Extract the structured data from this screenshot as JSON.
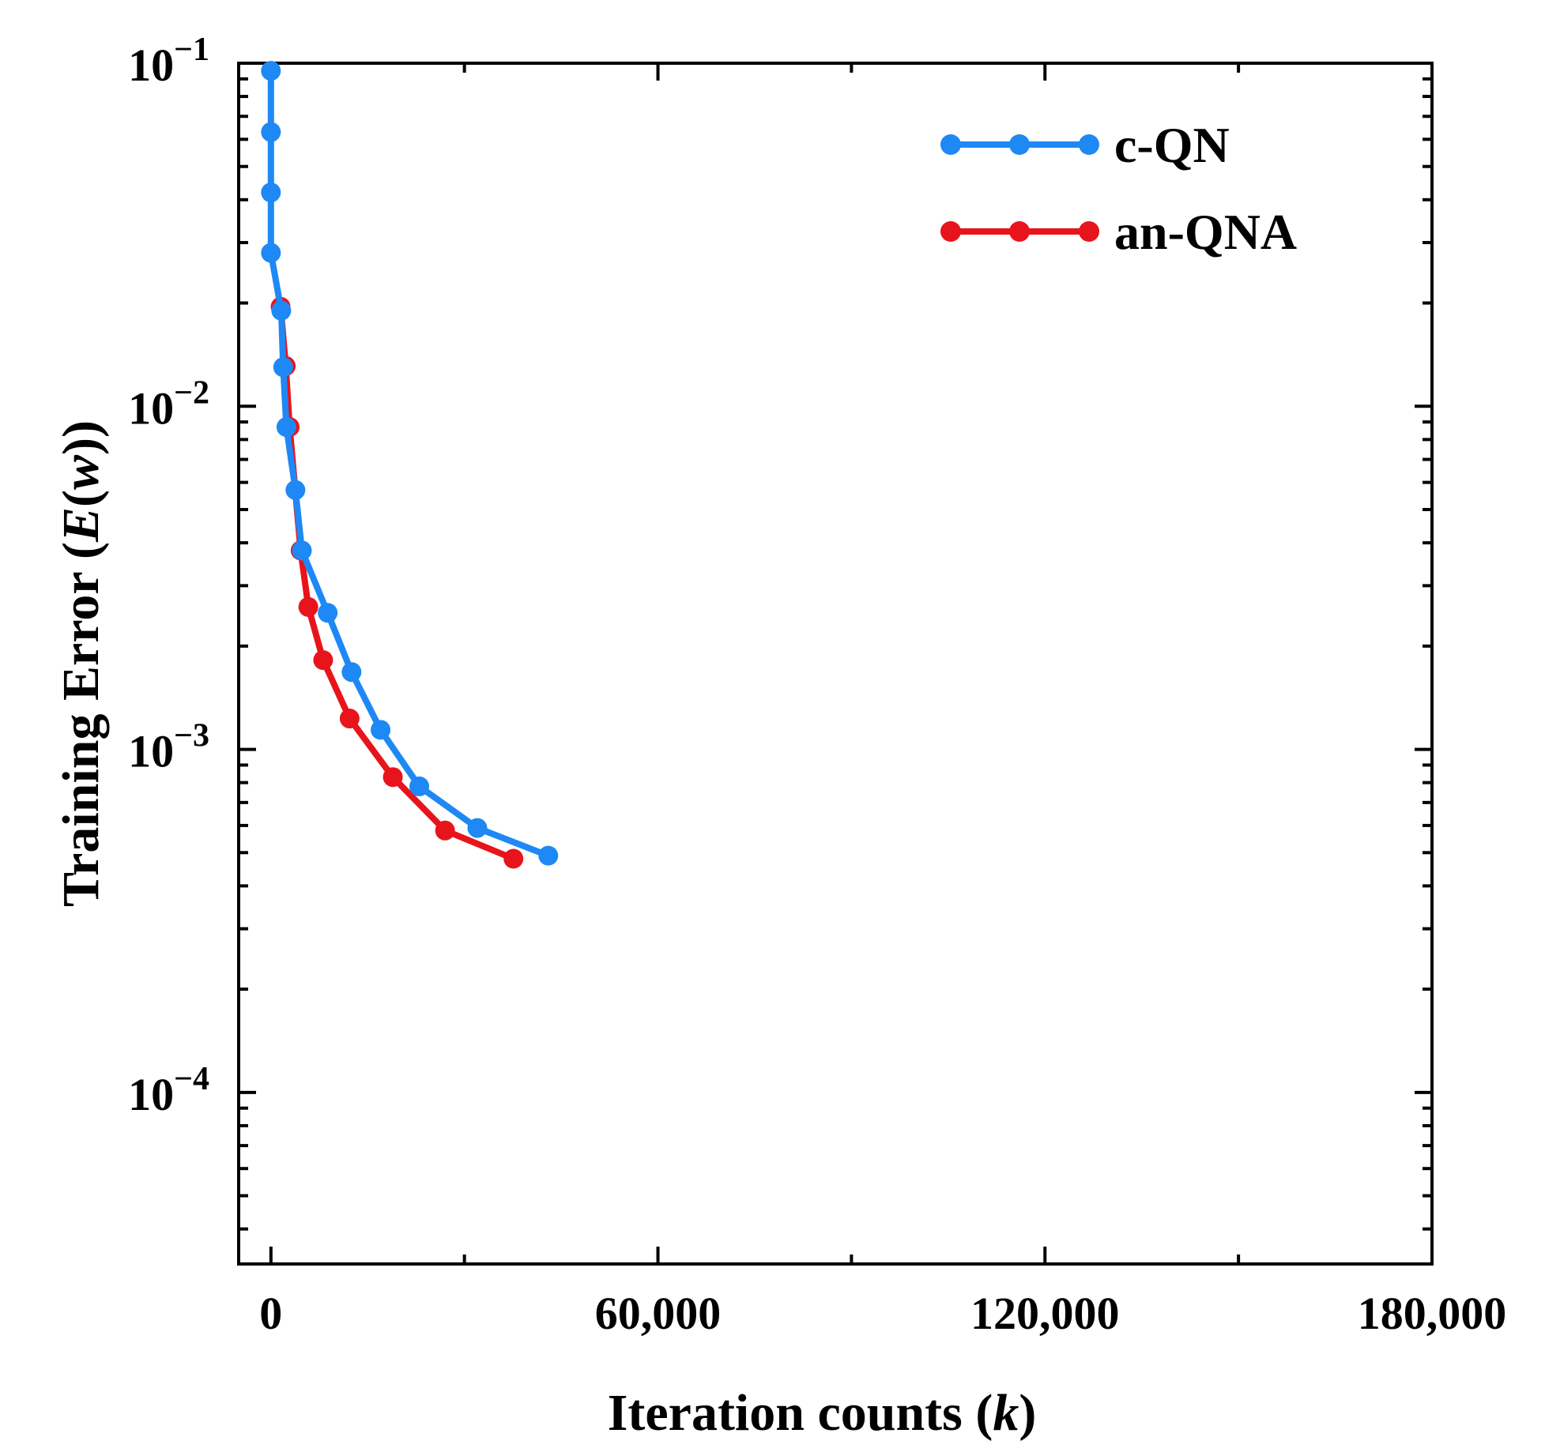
{
  "chart_data": {
    "type": "line",
    "title": "",
    "xlabel": {
      "text": "Iteration counts (",
      "var": "k",
      "close": ")"
    },
    "ylabel": {
      "text": "Training Error (",
      "var": "E",
      "open_paren": "(",
      "var2": "w",
      "close": "))"
    },
    "xlim": [
      -5000,
      180000
    ],
    "ylim_log10": [
      -4.5,
      -1
    ],
    "x_ticks": [
      0,
      60000,
      120000,
      180000
    ],
    "x_tick_labels": [
      "0",
      "60,000",
      "120,000",
      "180,000"
    ],
    "y_ticks_log10": [
      -1,
      -2,
      -3,
      -4
    ],
    "y_tick_labels": [
      {
        "base": "10",
        "exp": "−1"
      },
      {
        "base": "10",
        "exp": "−2"
      },
      {
        "base": "10",
        "exp": "−3"
      },
      {
        "base": "10",
        "exp": "−4"
      }
    ],
    "legend_position": "top-right",
    "series": [
      {
        "name": "c-QN",
        "color": "#1e88f5",
        "x": [
          0,
          0,
          0,
          0,
          1600,
          1900,
          2400,
          3800,
          4800,
          8800,
          12500,
          17000,
          23000,
          32000,
          43000
        ],
        "y": [
          0.095,
          0.063,
          0.042,
          0.028,
          0.019,
          0.013,
          0.0087,
          0.0057,
          0.0038,
          0.0025,
          0.00168,
          0.00114,
          0.00078,
          0.00059,
          0.00049
        ]
      },
      {
        "name": "an-QNA",
        "color": "#e8141b",
        "x": [
          1500,
          2300,
          2900,
          4600,
          5800,
          8100,
          12200,
          18900,
          27000,
          37600
        ],
        "y": [
          0.0195,
          0.0131,
          0.0087,
          0.0038,
          0.0026,
          0.00182,
          0.00123,
          0.00083,
          0.00058,
          0.00048
        ]
      }
    ]
  }
}
